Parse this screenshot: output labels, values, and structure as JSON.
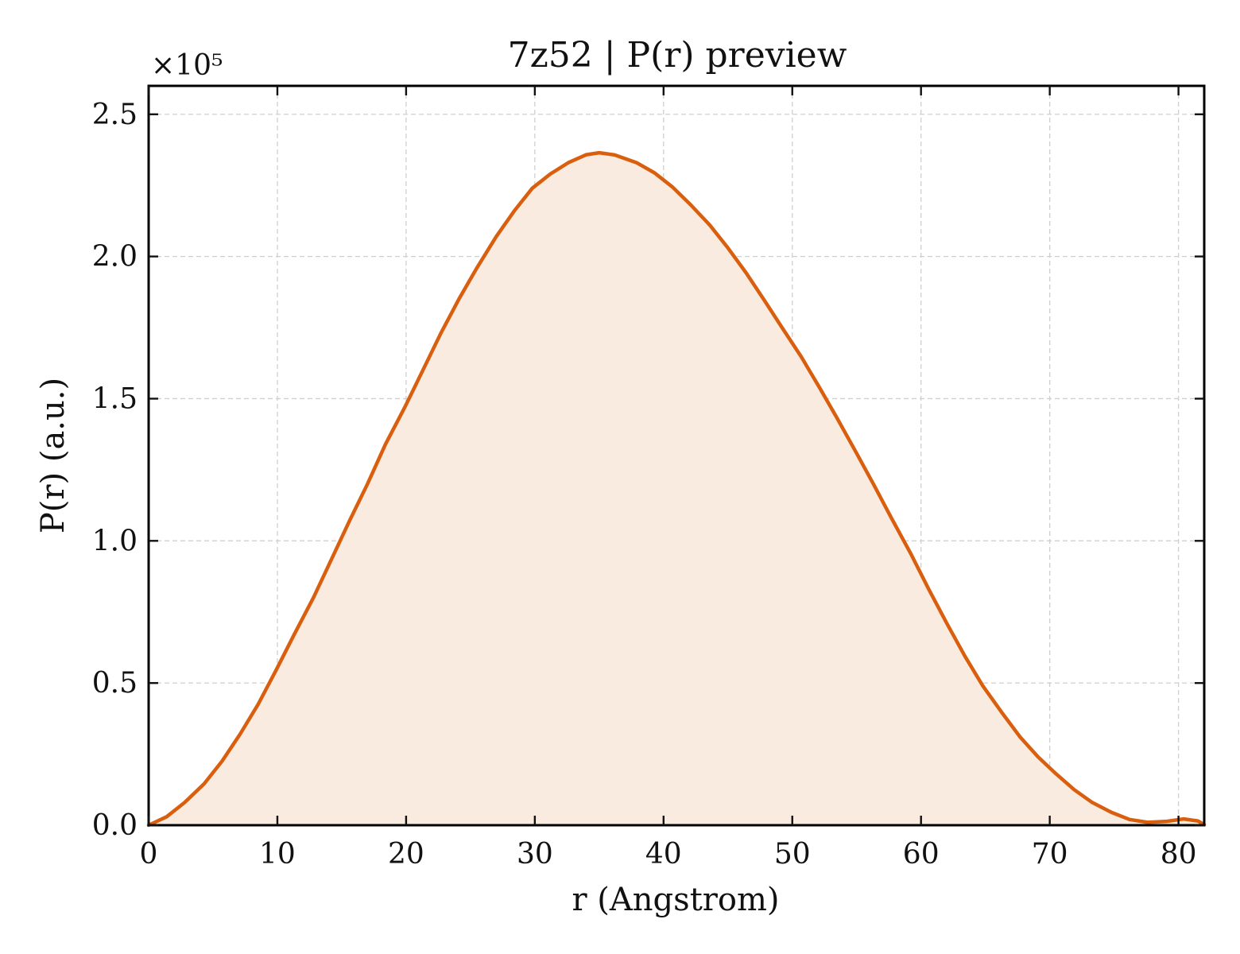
{
  "chart_data": {
    "type": "area",
    "title": "7z52 | P(r) preview",
    "xlabel": "r (Angstrom)",
    "ylabel": "P(r) (a.u.)",
    "y_multiplier_label": "×10⁵",
    "y_scale": 100000,
    "xlim": [
      0,
      82
    ],
    "ylim": [
      0,
      2.6
    ],
    "xticks": [
      0,
      10,
      20,
      30,
      40,
      50,
      60,
      70,
      80
    ],
    "xtick_labels": [
      "0",
      "10",
      "20",
      "30",
      "40",
      "50",
      "60",
      "70",
      "80"
    ],
    "yticks": [
      0,
      0.5,
      1.0,
      1.5,
      2.0,
      2.5
    ],
    "ytick_labels": [
      "0.0",
      "0.5",
      "1.0",
      "1.5",
      "2.0",
      "2.5"
    ],
    "grid": true,
    "line_color": "#d95f0e",
    "fill_color": "#f9ebe0",
    "series": [
      {
        "x": [
          0,
          1.4,
          2.8,
          4.3,
          5.7,
          7.1,
          8.5,
          9.9,
          11.3,
          12.8,
          14.2,
          15.6,
          17.0,
          18.4,
          19.9,
          21.3,
          22.7,
          24.1,
          25.5,
          27.0,
          28.4,
          29.8,
          31.2,
          32.6,
          34.0,
          35.0,
          36.2,
          37.9,
          39.3,
          40.7,
          42.1,
          43.6,
          45.0,
          46.4,
          47.8,
          49.2,
          50.7,
          52.1,
          53.5,
          54.9,
          56.3,
          57.7,
          59.2,
          60.6,
          62.0,
          63.4,
          64.8,
          66.3,
          67.7,
          69.1,
          70.5,
          71.9,
          73.3,
          74.8,
          76.2,
          77.6,
          79.0,
          80.4,
          81.5,
          82.0
        ],
        "y": [
          0,
          0.03,
          0.08,
          0.145,
          0.225,
          0.32,
          0.425,
          0.545,
          0.67,
          0.8,
          0.935,
          1.07,
          1.2,
          1.34,
          1.47,
          1.6,
          1.73,
          1.85,
          1.96,
          2.07,
          2.16,
          2.24,
          2.29,
          2.33,
          2.358,
          2.365,
          2.357,
          2.33,
          2.294,
          2.244,
          2.182,
          2.11,
          2.03,
          1.943,
          1.848,
          1.75,
          1.647,
          1.54,
          1.43,
          1.316,
          1.2,
          1.08,
          0.955,
          0.83,
          0.71,
          0.595,
          0.49,
          0.395,
          0.31,
          0.24,
          0.18,
          0.125,
          0.08,
          0.045,
          0.02,
          0.01,
          0.013,
          0.022,
          0.015,
          0.002
        ]
      }
    ]
  }
}
